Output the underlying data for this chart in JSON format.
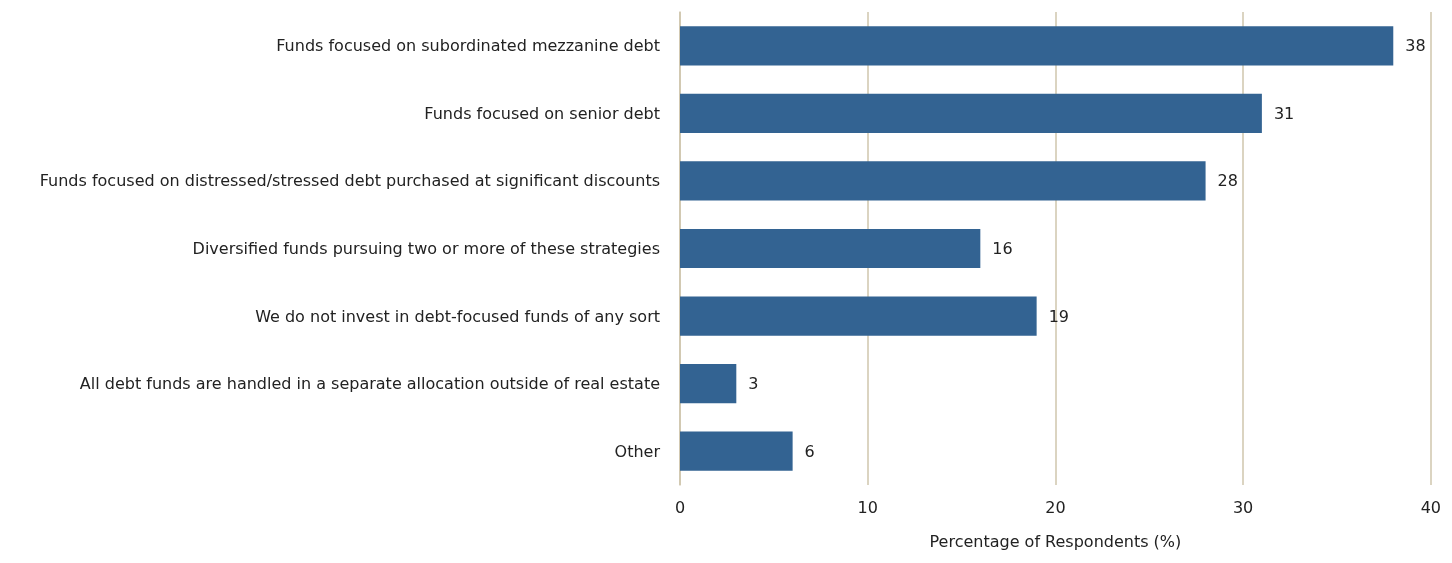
{
  "chart_data": {
    "type": "bar",
    "orientation": "horizontal",
    "xlabel": "Percentage of Respondents (%)",
    "categories": [
      "Funds focused on subordinated mezzanine debt",
      "Funds focused on senior debt",
      "Funds focused on distressed/stressed debt purchased at significant discounts",
      "Diversified funds pursuing two or more of these strategies",
      "We do not invest in debt-focused funds of any sort",
      "All debt funds are handled in a separate allocation outside of real estate",
      "Other"
    ],
    "values": [
      38,
      31,
      28,
      16,
      19,
      3,
      6
    ],
    "color": "#336392",
    "xlim": [
      0,
      40
    ],
    "xticks": [
      0,
      10,
      20,
      30,
      40
    ],
    "grid": "x",
    "data_labels": true
  }
}
